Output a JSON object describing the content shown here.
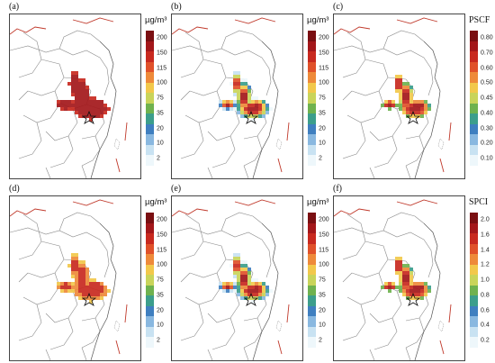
{
  "panels": [
    {
      "label": "(a)",
      "unit": "µg/m³",
      "unit_kind": "conc",
      "ticks": [
        "200",
        "150",
        "115",
        "100",
        "75",
        "35",
        "20",
        "10",
        "2"
      ],
      "fill": "dark"
    },
    {
      "label": "(b)",
      "unit": "µg/m³",
      "unit_kind": "conc",
      "ticks": [
        "200",
        "150",
        "115",
        "100",
        "75",
        "35",
        "20",
        "10",
        "2"
      ],
      "fill": "grid"
    },
    {
      "label": "(c)",
      "unit": "PSCF",
      "unit_kind": "index",
      "ticks": [
        "0.80",
        "0.70",
        "0.60",
        "0.50",
        "0.45",
        "0.40",
        "0.30",
        "0.20",
        "0.10"
      ],
      "fill": "grid-small"
    },
    {
      "label": "(d)",
      "unit": "µg/m³",
      "unit_kind": "conc",
      "ticks": [
        "200",
        "150",
        "115",
        "100",
        "75",
        "35",
        "20",
        "10",
        "2"
      ],
      "fill": "traj"
    },
    {
      "label": "(e)",
      "unit": "µg/m³",
      "unit_kind": "conc",
      "ticks": [
        "200",
        "150",
        "115",
        "100",
        "75",
        "35",
        "20",
        "10",
        "2"
      ],
      "fill": "grid"
    },
    {
      "label": "(f)",
      "unit": "SPCI",
      "unit_kind": "index",
      "ticks": [
        "2.0",
        "1.6",
        "1.4",
        "1.2",
        "1.0",
        "0.8",
        "0.6",
        "0.4",
        "0.2"
      ],
      "fill": "grid-small"
    }
  ],
  "colorscale": [
    "#7a0f12",
    "#a3171a",
    "#c8291f",
    "#e0512a",
    "#ee8a3a",
    "#f2c84b",
    "#c9d45a",
    "#6fb24f",
    "#3c9e8c",
    "#3f7fc0",
    "#89b8e0",
    "#c8e2f2",
    "#eef7fb"
  ],
  "map_colors": {
    "land_border": "#777777",
    "country_border": "#c0392b",
    "coast": "#555555"
  }
}
